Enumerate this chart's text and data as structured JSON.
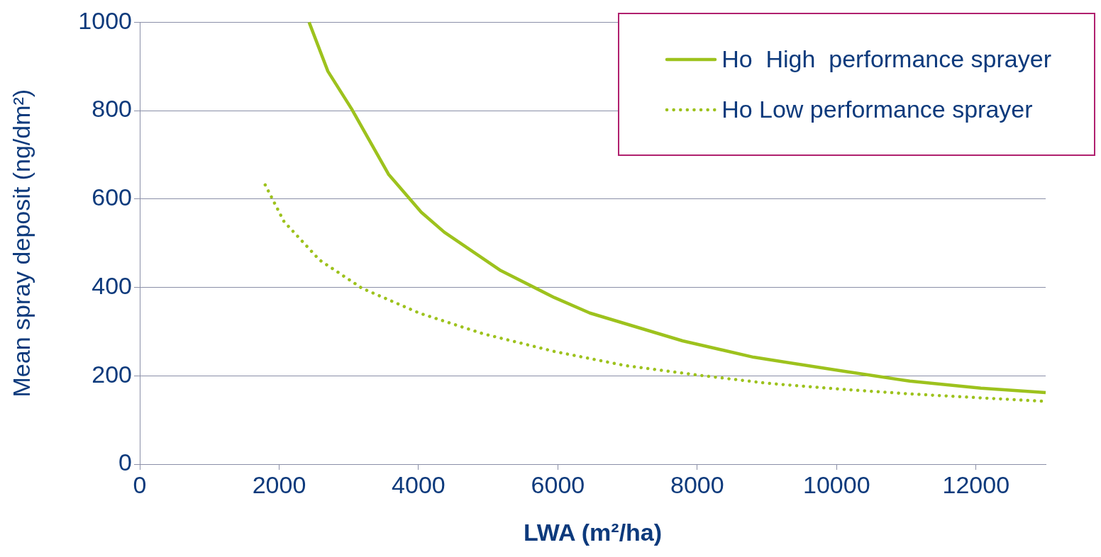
{
  "chart_data": {
    "type": "line",
    "xlabel": "LWA (m²/ha)",
    "ylabel": "Mean spray deposit (ng/dm²)",
    "xlim": [
      0,
      13000
    ],
    "xticks": [
      0,
      2000,
      4000,
      6000,
      8000,
      10000,
      12000
    ],
    "ylim": [
      0,
      1000
    ],
    "yticks": [
      0,
      200,
      400,
      600,
      800,
      1000
    ],
    "grid": "y",
    "legend": "top right",
    "marker": "none",
    "series": [
      {
        "name": "Ho  High  performance sprayer",
        "color": "#9dc21d",
        "line_style": "solid",
        "x": [
          2430,
          2700,
          3040,
          3570,
          4040,
          4370,
          5180,
          5950,
          6460,
          7790,
          8810,
          10030,
          11050,
          12070,
          13000
        ],
        "values": [
          1000,
          889,
          804,
          656,
          570,
          525,
          438,
          377,
          342,
          279,
          242,
          212,
          188,
          172,
          162
        ]
      },
      {
        "name": "Ho Low performance sprayer",
        "color": "#9dc21d",
        "line_style": "dotted",
        "x": [
          1800,
          2070,
          2580,
          3190,
          4010,
          4930,
          5950,
          6970,
          7990,
          9010,
          10030,
          11050,
          12070,
          13000
        ],
        "values": [
          632,
          549,
          462,
          398,
          342,
          295,
          255,
          223,
          202,
          183,
          170,
          159,
          150,
          142
        ]
      }
    ]
  }
}
